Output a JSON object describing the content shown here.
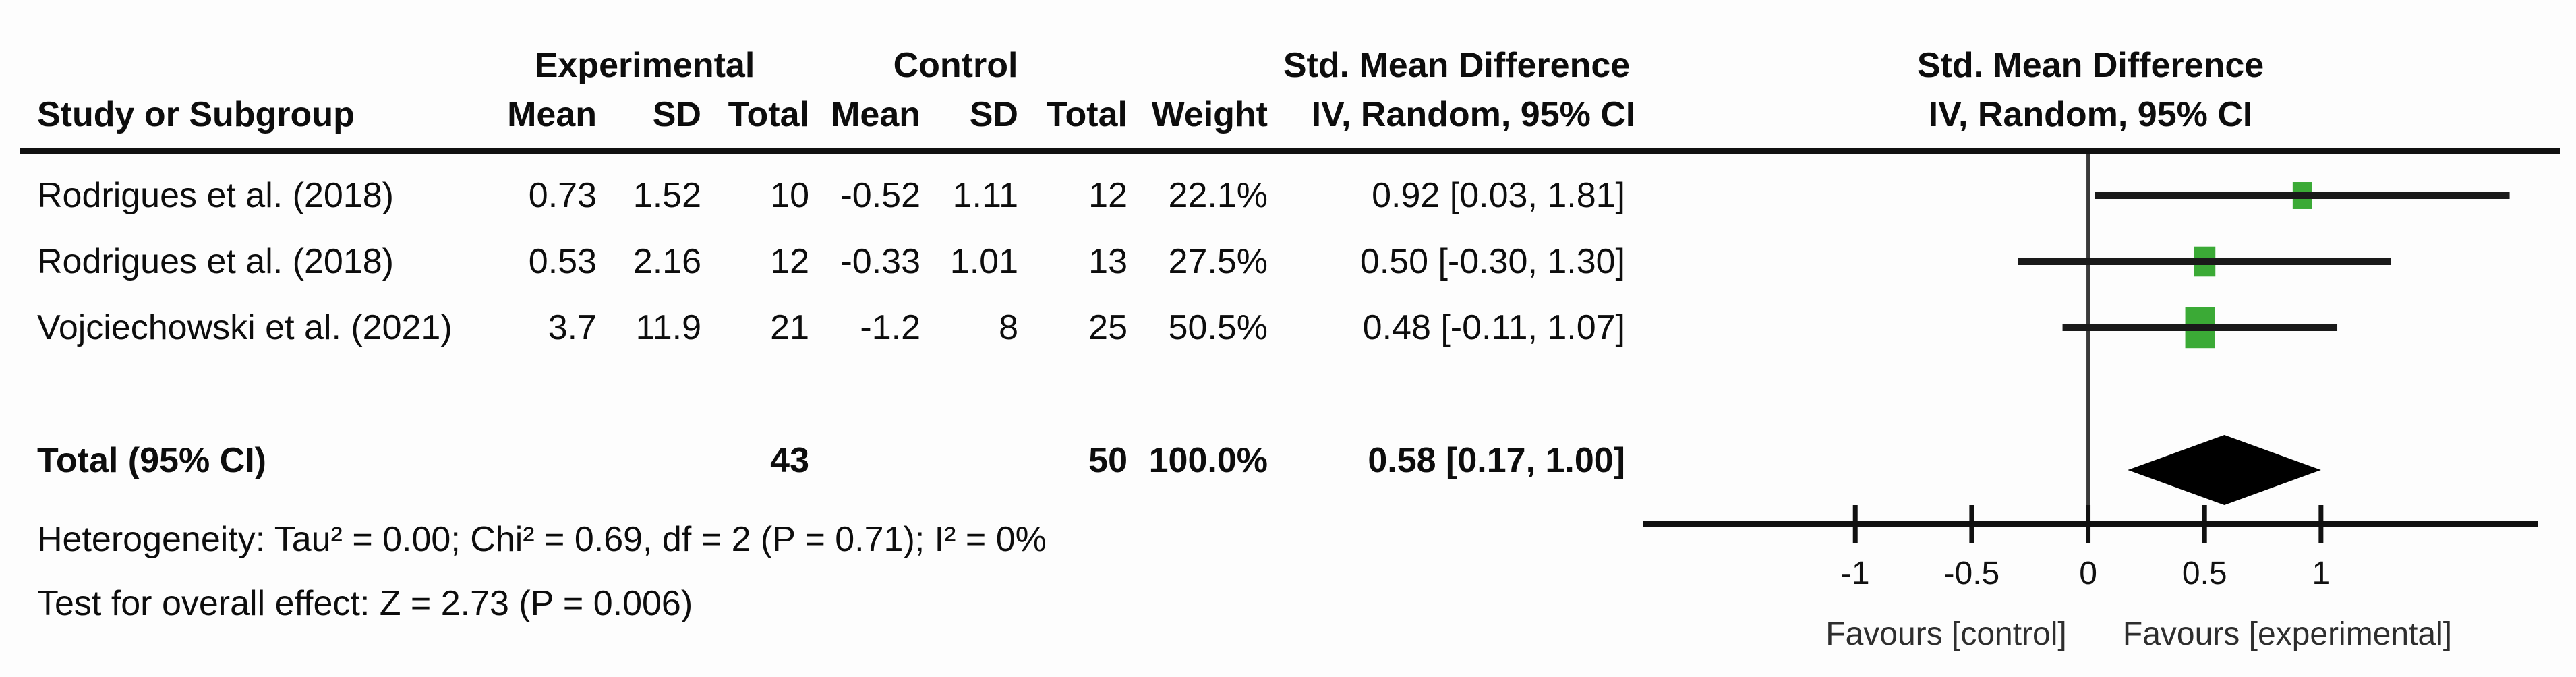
{
  "table": {
    "group_headers": {
      "experimental": "Experimental",
      "control": "Control",
      "smd_left": "Std. Mean Difference"
    },
    "col_headers": {
      "study": "Study or Subgroup",
      "mean": "Mean",
      "sd": "SD",
      "total": "Total",
      "weight": "Weight",
      "iv": "IV, Random, 95% CI"
    },
    "plot_headers": {
      "title": "Std. Mean Difference",
      "subtitle": "IV, Random, 95% CI"
    },
    "rows": [
      {
        "study": "Rodrigues et al. (2018)",
        "exp_mean": "0.73",
        "exp_sd": "1.52",
        "exp_total": "10",
        "ctrl_mean": "-0.52",
        "ctrl_sd": "1.11",
        "ctrl_total": "12",
        "weight": "22.1%",
        "ci": "0.92 [0.03, 1.81]"
      },
      {
        "study": "Rodrigues et al. (2018)",
        "exp_mean": "0.53",
        "exp_sd": "2.16",
        "exp_total": "12",
        "ctrl_mean": "-0.33",
        "ctrl_sd": "1.01",
        "ctrl_total": "13",
        "weight": "27.5%",
        "ci": "0.50 [-0.30, 1.30]"
      },
      {
        "study": "Vojciechowski et al. (2021)",
        "exp_mean": "3.7",
        "exp_sd": "11.9",
        "exp_total": "21",
        "ctrl_mean": "-1.2",
        "ctrl_sd": "8",
        "ctrl_total": "25",
        "weight": "50.5%",
        "ci": "0.48 [-0.11, 1.07]"
      }
    ],
    "total_row": {
      "label": "Total (95% CI)",
      "exp_total": "43",
      "ctrl_total": "50",
      "weight": "100.0%",
      "ci": "0.58 [0.17, 1.00]"
    },
    "heterogeneity": "Heterogeneity: Tau² = 0.00; Chi² = 0.69, df = 2 (P = 0.71); I² = 0%",
    "overall_effect": "Test for overall effect: Z = 2.73 (P = 0.006)"
  },
  "chart_data": {
    "type": "forest",
    "title": "Std. Mean Difference",
    "subtitle": "IV, Random, 95% CI",
    "effect_measure": "Std. Mean Difference (IV, Random, 95% CI)",
    "studies": [
      {
        "name": "Rodrigues et al. (2018)",
        "smd": 0.92,
        "ci_low": 0.03,
        "ci_high": 1.81,
        "weight_pct": 22.1
      },
      {
        "name": "Rodrigues et al. (2018)",
        "smd": 0.5,
        "ci_low": -0.3,
        "ci_high": 1.3,
        "weight_pct": 27.5
      },
      {
        "name": "Vojciechowski et al. (2021)",
        "smd": 0.48,
        "ci_low": -0.11,
        "ci_high": 1.07,
        "weight_pct": 50.5
      }
    ],
    "total": {
      "name": "Total (95% CI)",
      "smd": 0.58,
      "ci_low": 0.17,
      "ci_high": 1.0,
      "weight_pct": 100.0
    },
    "x_axis": {
      "ticks": [
        -1,
        -0.5,
        0,
        0.5,
        1
      ],
      "range": [
        -1.91,
        1.93
      ],
      "left_label": "Favours [control]",
      "right_label": "Favours [experimental]"
    },
    "marker_color": "#3baa36",
    "diamond_color": "#000000",
    "line_color": "#1a1a1a"
  }
}
